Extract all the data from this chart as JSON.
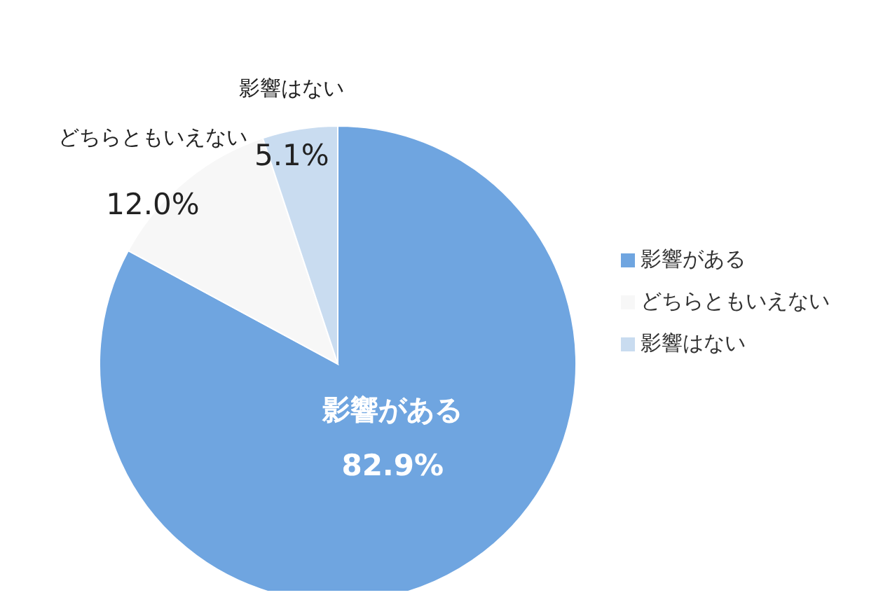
{
  "chart_data": {
    "type": "pie",
    "categories": [
      "影響がある",
      "どちらともいえない",
      "影響はない"
    ],
    "values": [
      82.9,
      12.0,
      5.1
    ],
    "value_labels": [
      "82.9%",
      "12.0%",
      "5.1%"
    ],
    "colors": [
      "#6fa5e0",
      "#f7f7f7",
      "#c9dcf0"
    ],
    "legend": "right"
  }
}
